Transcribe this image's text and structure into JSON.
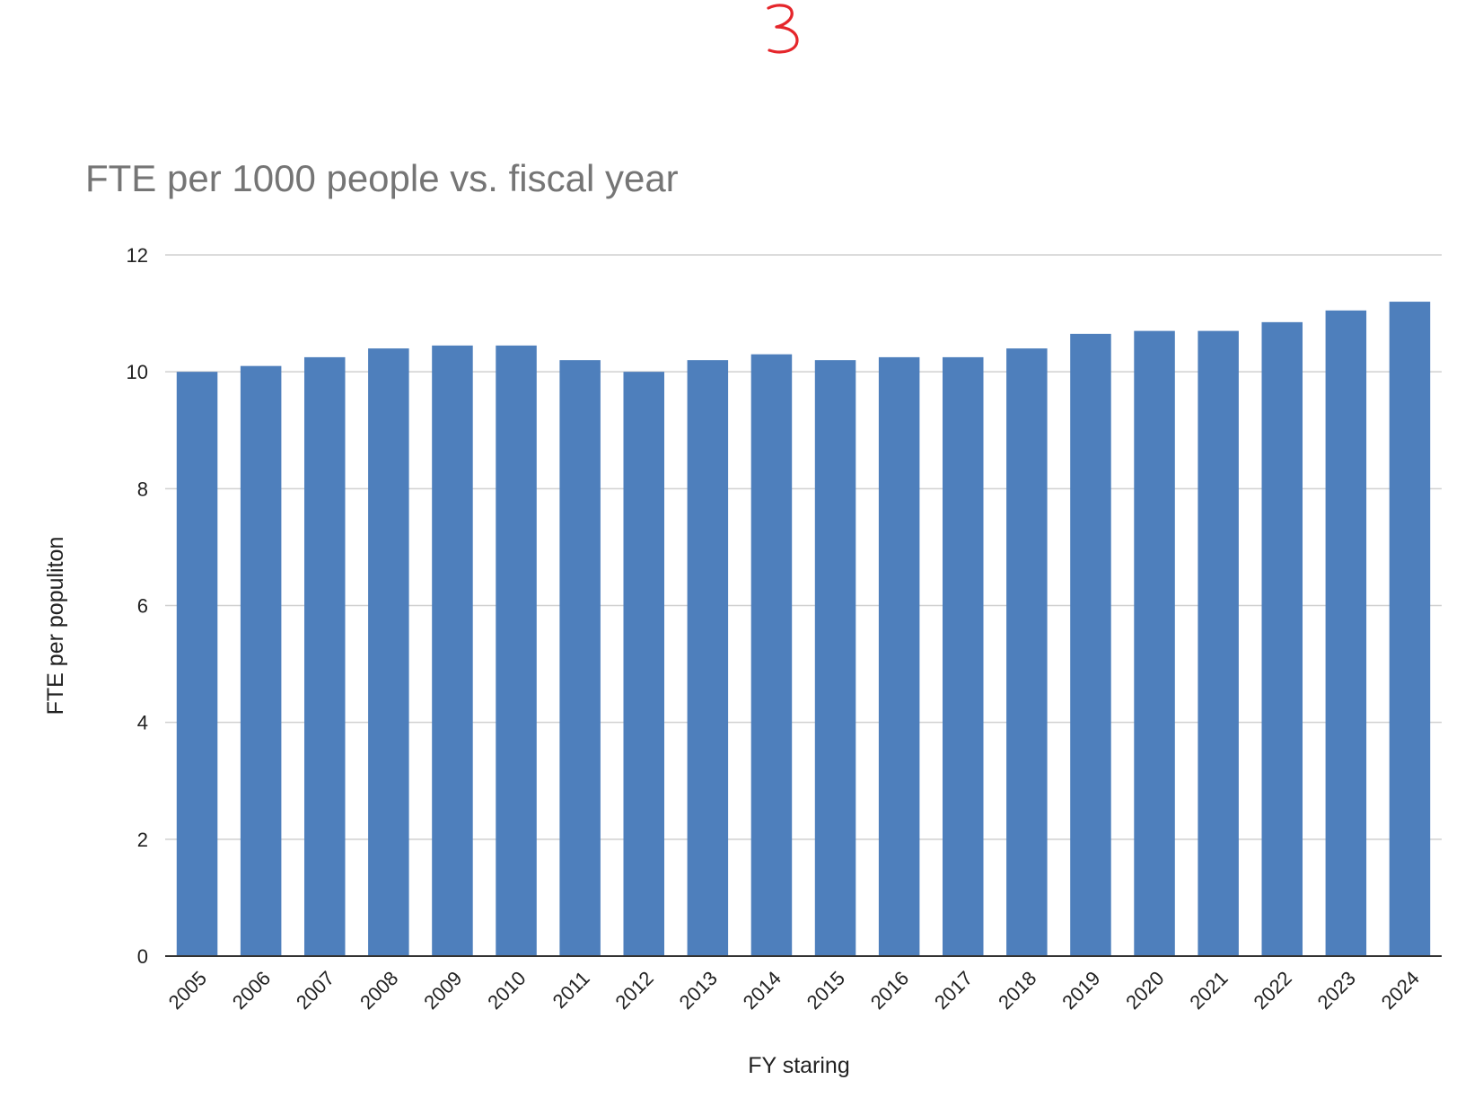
{
  "annotation": {
    "text": "3",
    "color": "#e5262b"
  },
  "chart_data": {
    "type": "bar",
    "title": "FTE per 1000 people vs. fiscal year",
    "xlabel": "FY staring",
    "ylabel": "FTE per populiton",
    "categories": [
      "2005",
      "2006",
      "2007",
      "2008",
      "2009",
      "2010",
      "2011",
      "2012",
      "2013",
      "2014",
      "2015",
      "2016",
      "2017",
      "2018",
      "2019",
      "2020",
      "2021",
      "2022",
      "2023",
      "2024"
    ],
    "series": [
      {
        "values": [
          10.0,
          10.1,
          10.25,
          10.4,
          10.45,
          10.45,
          10.2,
          10.0,
          10.2,
          10.3,
          10.2,
          10.25,
          10.25,
          10.4,
          10.65,
          10.7,
          10.7,
          10.85,
          11.05,
          11.2
        ],
        "color": "#4e7fbc"
      }
    ],
    "ylim": [
      0,
      12
    ],
    "yticks": [
      0,
      2,
      4,
      6,
      8,
      10,
      12
    ],
    "grid": true,
    "legend": "none",
    "title_color": "#757575",
    "grid_color": "#d0d0d0"
  }
}
